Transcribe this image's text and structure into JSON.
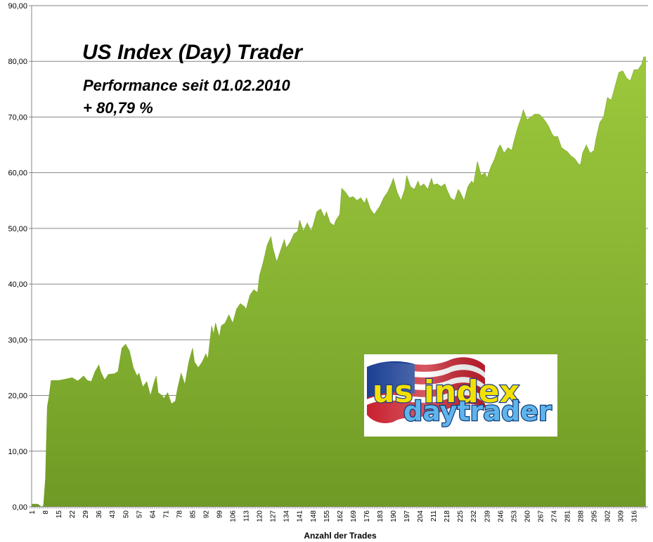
{
  "chart_data": {
    "type": "area",
    "title": "US Index (Day) Trader",
    "subtitle_line1": "Performance  seit  01.02.2010",
    "subtitle_line2": "+ 80,79 %",
    "xlabel": "Anzahl der Trades",
    "ylabel": "",
    "ylim": [
      0,
      90
    ],
    "xlim": [
      1,
      322
    ],
    "y_ticks": [
      "0,00",
      "10,00",
      "20,00",
      "30,00",
      "40,00",
      "50,00",
      "60,00",
      "70,00",
      "80,00",
      "90,00"
    ],
    "x_ticks": [
      "1",
      "8",
      "15",
      "22",
      "29",
      "36",
      "43",
      "50",
      "57",
      "64",
      "71",
      "78",
      "85",
      "92",
      "99",
      "106",
      "113",
      "120",
      "127",
      "134",
      "141",
      "148",
      "155",
      "162",
      "169",
      "176",
      "183",
      "190",
      "197",
      "204",
      "211",
      "218",
      "225",
      "232",
      "239",
      "246",
      "253",
      "260",
      "267",
      "274",
      "281",
      "288",
      "295",
      "302",
      "309",
      "316"
    ],
    "grid": "horizontal",
    "fill_color": "#8ab833",
    "points": [
      [
        1,
        0.5
      ],
      [
        4,
        0.5
      ],
      [
        6,
        0
      ],
      [
        7,
        0.2
      ],
      [
        8,
        5
      ],
      [
        9,
        18
      ],
      [
        10,
        20
      ],
      [
        11,
        22.7
      ],
      [
        15,
        22.7
      ],
      [
        18,
        22.9
      ],
      [
        22,
        23.2
      ],
      [
        25,
        22.6
      ],
      [
        28,
        23.5
      ],
      [
        30,
        22.7
      ],
      [
        32,
        22.5
      ],
      [
        34,
        24.3
      ],
      [
        36,
        25.5
      ],
      [
        37,
        24.2
      ],
      [
        39,
        22.8
      ],
      [
        41,
        23.8
      ],
      [
        44,
        23.9
      ],
      [
        46,
        24.3
      ],
      [
        48,
        28.5
      ],
      [
        50,
        29.2
      ],
      [
        52,
        28
      ],
      [
        54,
        25
      ],
      [
        56,
        23.5
      ],
      [
        57,
        24
      ],
      [
        59,
        21.5
      ],
      [
        61,
        22.5
      ],
      [
        63,
        20
      ],
      [
        65,
        22.5
      ],
      [
        66,
        23.5
      ],
      [
        67,
        20.5
      ],
      [
        69,
        20
      ],
      [
        70,
        19.5
      ],
      [
        72,
        20.5
      ],
      [
        74,
        18.5
      ],
      [
        76,
        19
      ],
      [
        77,
        21
      ],
      [
        79,
        24
      ],
      [
        81,
        22
      ],
      [
        83,
        26
      ],
      [
        85,
        28.5
      ],
      [
        86,
        26
      ],
      [
        88,
        25
      ],
      [
        90,
        26
      ],
      [
        92,
        27.5
      ],
      [
        93,
        26.5
      ],
      [
        95,
        32.5
      ],
      [
        96,
        31
      ],
      [
        97,
        33
      ],
      [
        99,
        30.5
      ],
      [
        100,
        32.5
      ],
      [
        102,
        33
      ],
      [
        104,
        34.5
      ],
      [
        106,
        33
      ],
      [
        108,
        35.5
      ],
      [
        110,
        36.5
      ],
      [
        112,
        36
      ],
      [
        113,
        35.5
      ],
      [
        115,
        38
      ],
      [
        117,
        39
      ],
      [
        119,
        38.5
      ],
      [
        120,
        41.5
      ],
      [
        122,
        44
      ],
      [
        124,
        47
      ],
      [
        126,
        48.5
      ],
      [
        127,
        46.5
      ],
      [
        129,
        44
      ],
      [
        131,
        46
      ],
      [
        133,
        48
      ],
      [
        134,
        46.5
      ],
      [
        136,
        47.5
      ],
      [
        138,
        49
      ],
      [
        140,
        49.5
      ],
      [
        141,
        51.5
      ],
      [
        143,
        49.5
      ],
      [
        145,
        51
      ],
      [
        147,
        49.5
      ],
      [
        148,
        50.5
      ],
      [
        150,
        53
      ],
      [
        152,
        53.5
      ],
      [
        154,
        52
      ],
      [
        155,
        53
      ],
      [
        157,
        51
      ],
      [
        159,
        50.5
      ],
      [
        160,
        51.5
      ],
      [
        162,
        52.5
      ],
      [
        163,
        57.2
      ],
      [
        165,
        56.5
      ],
      [
        167,
        55.5
      ],
      [
        169,
        55.7
      ],
      [
        171,
        55
      ],
      [
        173,
        55.5
      ],
      [
        175,
        54.5
      ],
      [
        176,
        55.5
      ],
      [
        178,
        53.5
      ],
      [
        180,
        52.5
      ],
      [
        182,
        53.5
      ],
      [
        183,
        54
      ],
      [
        185,
        55.5
      ],
      [
        187,
        56.5
      ],
      [
        189,
        58
      ],
      [
        190,
        59
      ],
      [
        192,
        56.5
      ],
      [
        194,
        55
      ],
      [
        196,
        57
      ],
      [
        197,
        59.5
      ],
      [
        199,
        57.5
      ],
      [
        201,
        57
      ],
      [
        203,
        58.5
      ],
      [
        204,
        57.5
      ],
      [
        206,
        58
      ],
      [
        208,
        57
      ],
      [
        210,
        59
      ],
      [
        211,
        57.8
      ],
      [
        213,
        58
      ],
      [
        215,
        57.5
      ],
      [
        217,
        58
      ],
      [
        218,
        57
      ],
      [
        220,
        55.5
      ],
      [
        222,
        55
      ],
      [
        224,
        57
      ],
      [
        225,
        56.5
      ],
      [
        227,
        55
      ],
      [
        229,
        57.5
      ],
      [
        231,
        58.5
      ],
      [
        232,
        58
      ],
      [
        234,
        62
      ],
      [
        236,
        59.5
      ],
      [
        238,
        60
      ],
      [
        239,
        59
      ],
      [
        241,
        61
      ],
      [
        243,
        62.5
      ],
      [
        245,
        64.5
      ],
      [
        246,
        65
      ],
      [
        248,
        63.5
      ],
      [
        250,
        64.5
      ],
      [
        252,
        64
      ],
      [
        253,
        65.5
      ],
      [
        255,
        68
      ],
      [
        257,
        70
      ],
      [
        258,
        71.3
      ],
      [
        260,
        69.5
      ],
      [
        262,
        70
      ],
      [
        264,
        70.5
      ],
      [
        266,
        70.5
      ],
      [
        267,
        70.3
      ],
      [
        269,
        69.5
      ],
      [
        271,
        68.5
      ],
      [
        273,
        67
      ],
      [
        274,
        66.5
      ],
      [
        276,
        66.5
      ],
      [
        278,
        64.5
      ],
      [
        280,
        64
      ],
      [
        281,
        63.8
      ],
      [
        283,
        63
      ],
      [
        285,
        62.5
      ],
      [
        287,
        61.5
      ],
      [
        288,
        61.5
      ],
      [
        289,
        63.5
      ],
      [
        291,
        65
      ],
      [
        293,
        63.5
      ],
      [
        295,
        64
      ],
      [
        296,
        66
      ],
      [
        298,
        69
      ],
      [
        300,
        70
      ],
      [
        302,
        73.5
      ],
      [
        304,
        73
      ],
      [
        306,
        75.5
      ],
      [
        308,
        78
      ],
      [
        310,
        78.3
      ],
      [
        312,
        77
      ],
      [
        314,
        76.5
      ],
      [
        316,
        78.5
      ],
      [
        318,
        78.5
      ],
      [
        320,
        79.5
      ],
      [
        321,
        80.79
      ],
      [
        322,
        80.79
      ]
    ]
  },
  "logo": {
    "line1": "us index",
    "line2": "daytrader"
  }
}
